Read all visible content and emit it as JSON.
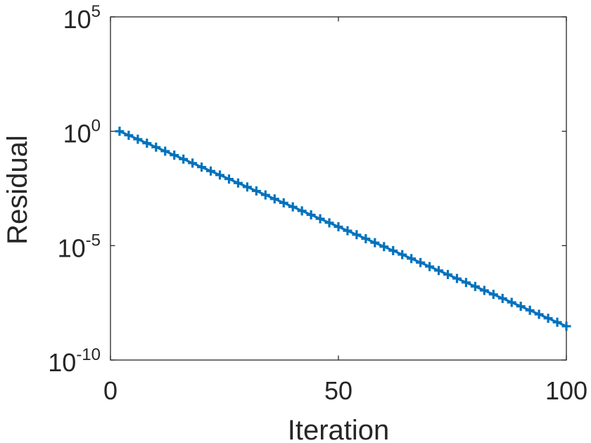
{
  "chart_data": {
    "type": "line",
    "title": "",
    "xlabel": "Iteration",
    "ylabel": "Residual",
    "xlim": [
      0,
      100
    ],
    "ylim": [
      1e-10,
      100000
    ],
    "yscale": "log",
    "grid": false,
    "box": true,
    "xticks": [
      {
        "value": 0,
        "label": "0"
      },
      {
        "value": 50,
        "label": "50"
      },
      {
        "value": 100,
        "label": "100"
      }
    ],
    "yticks": [
      {
        "value": 1e-10,
        "base": "10",
        "exp": "-10"
      },
      {
        "value": 1e-05,
        "base": "10",
        "exp": "-5"
      },
      {
        "value": 1,
        "base": "10",
        "exp": "0"
      },
      {
        "value": 100000,
        "base": "10",
        "exp": "5"
      }
    ],
    "series": [
      {
        "color": "#0072BD",
        "marker": "plus",
        "x_start": 2,
        "x_end": 100,
        "x_step": 2,
        "y_start": 1,
        "y_end": 3e-09
      }
    ]
  }
}
